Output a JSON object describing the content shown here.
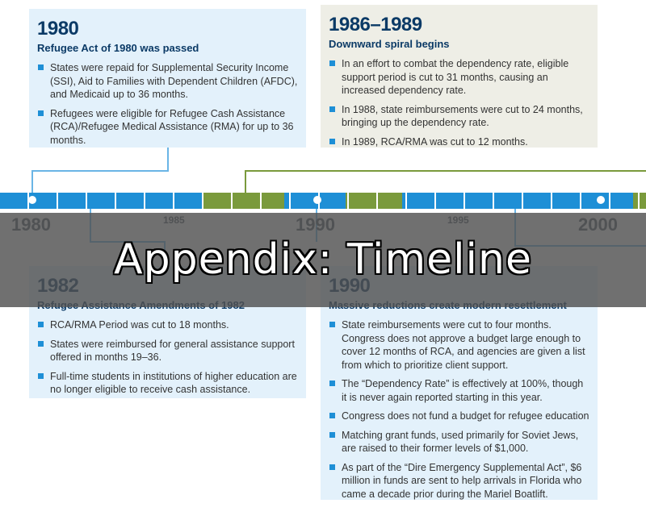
{
  "title": "Appendix: Timeline",
  "colors": {
    "blue": "#1e8fd6",
    "green": "#7a9a3c",
    "navy": "#0b3a66"
  },
  "axis": {
    "major": [
      "1980",
      "1990",
      "2000"
    ],
    "minor": [
      "1985",
      "1995"
    ]
  },
  "events": {
    "e1980": {
      "year": "1980",
      "subtitle": "Refugee Act of 1980 was passed",
      "bullets": [
        "States were repaid for Supplemental Security Income (SSI), Aid to Families with Dependent Children (AFDC), and Medicaid up to 36 months.",
        "Refugees were eligible for Refugee Cash Assistance (RCA)/Refugee Medical Assistance (RMA) for up to 36 months."
      ]
    },
    "e1986": {
      "year": "1986–1989",
      "subtitle": "Downward spiral begins",
      "bullets": [
        "In an effort to combat the dependency rate, eligible support period is cut to 31 months, causing an increased dependency rate.",
        "In 1988, state reimbursements were cut to 24 months, bringing up the dependency rate.",
        "In 1989, RCA/RMA was cut to 12 months."
      ]
    },
    "e1982": {
      "year": "1982",
      "subtitle": "Refugee Assistance Amendments of 1982",
      "bullets": [
        "RCA/RMA Period was cut to 18 months.",
        "States were reimbursed for general assistance support offered in months 19–36.",
        "Full-time students in institutions of higher education are no longer eligible to receive cash assistance."
      ]
    },
    "e1990": {
      "year": "1990",
      "subtitle": "Massive reductions create modern resettlement",
      "bullets": [
        "State reimbursements were cut to four months. Congress does not approve a budget large enough to cover 12 months of RCA, and agencies are given a list from which to prioritize client support.",
        "The “Dependency Rate” is effectively at 100%, though it is never again reported starting in this year.",
        "Congress does not fund a budget for refugee education",
        "Matching grant funds, used primarily for Soviet Jews, are raised to their former levels of $1,000.",
        "As part of the “Dire Emergency Supplemental Act”, $6 million in funds are sent to help arrivals in Florida who came a decade prior during the Mariel Boatlift."
      ]
    }
  }
}
